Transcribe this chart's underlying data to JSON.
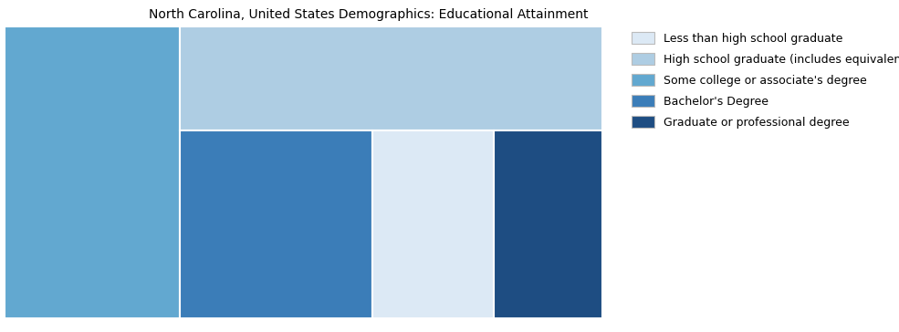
{
  "title": "North Carolina, United States Demographics: Educational Attainment",
  "categories": [
    "Less than high school graduate",
    "High school graduate (includes equivalency)",
    "Some college or associate's degree",
    "Bachelor's Degree",
    "Graduate or professional degree"
  ],
  "values": [
    13.1,
    25.2,
    29.3,
    20.7,
    11.7
  ],
  "colors": [
    "#dce9f5",
    "#aecde3",
    "#62a8d0",
    "#3b7db8",
    "#1e4d82"
  ],
  "background_color": "#ffffff",
  "title_fontsize": 10,
  "legend_fontsize": 9,
  "figsize": [
    9.85,
    3.64
  ],
  "dpi": 100
}
